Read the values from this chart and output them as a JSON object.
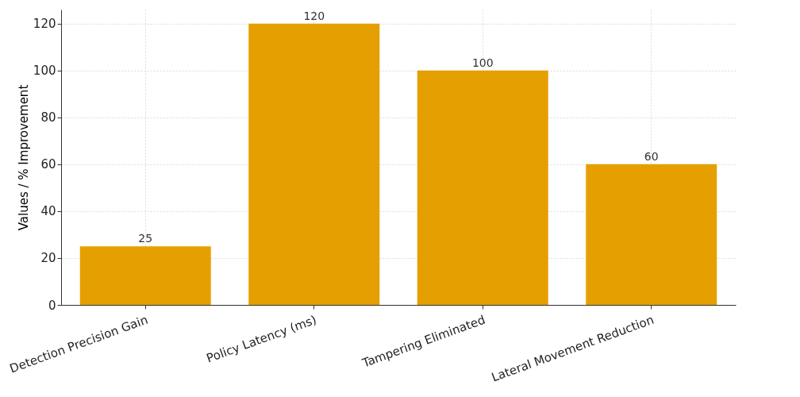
{
  "chart_data": {
    "type": "bar",
    "ylabel": "Values / % Improvement",
    "categories": [
      "Detection Precision Gain",
      "Policy Latency (ms)",
      "Tampering Eliminated",
      "Lateral Movement Reduction"
    ],
    "values": [
      25,
      120,
      100,
      60
    ],
    "color": "#e69f00",
    "ylim": [
      0,
      126
    ],
    "yticks": [
      0,
      20,
      40,
      60,
      80,
      100,
      120
    ],
    "grid": true,
    "data_labels": true
  }
}
